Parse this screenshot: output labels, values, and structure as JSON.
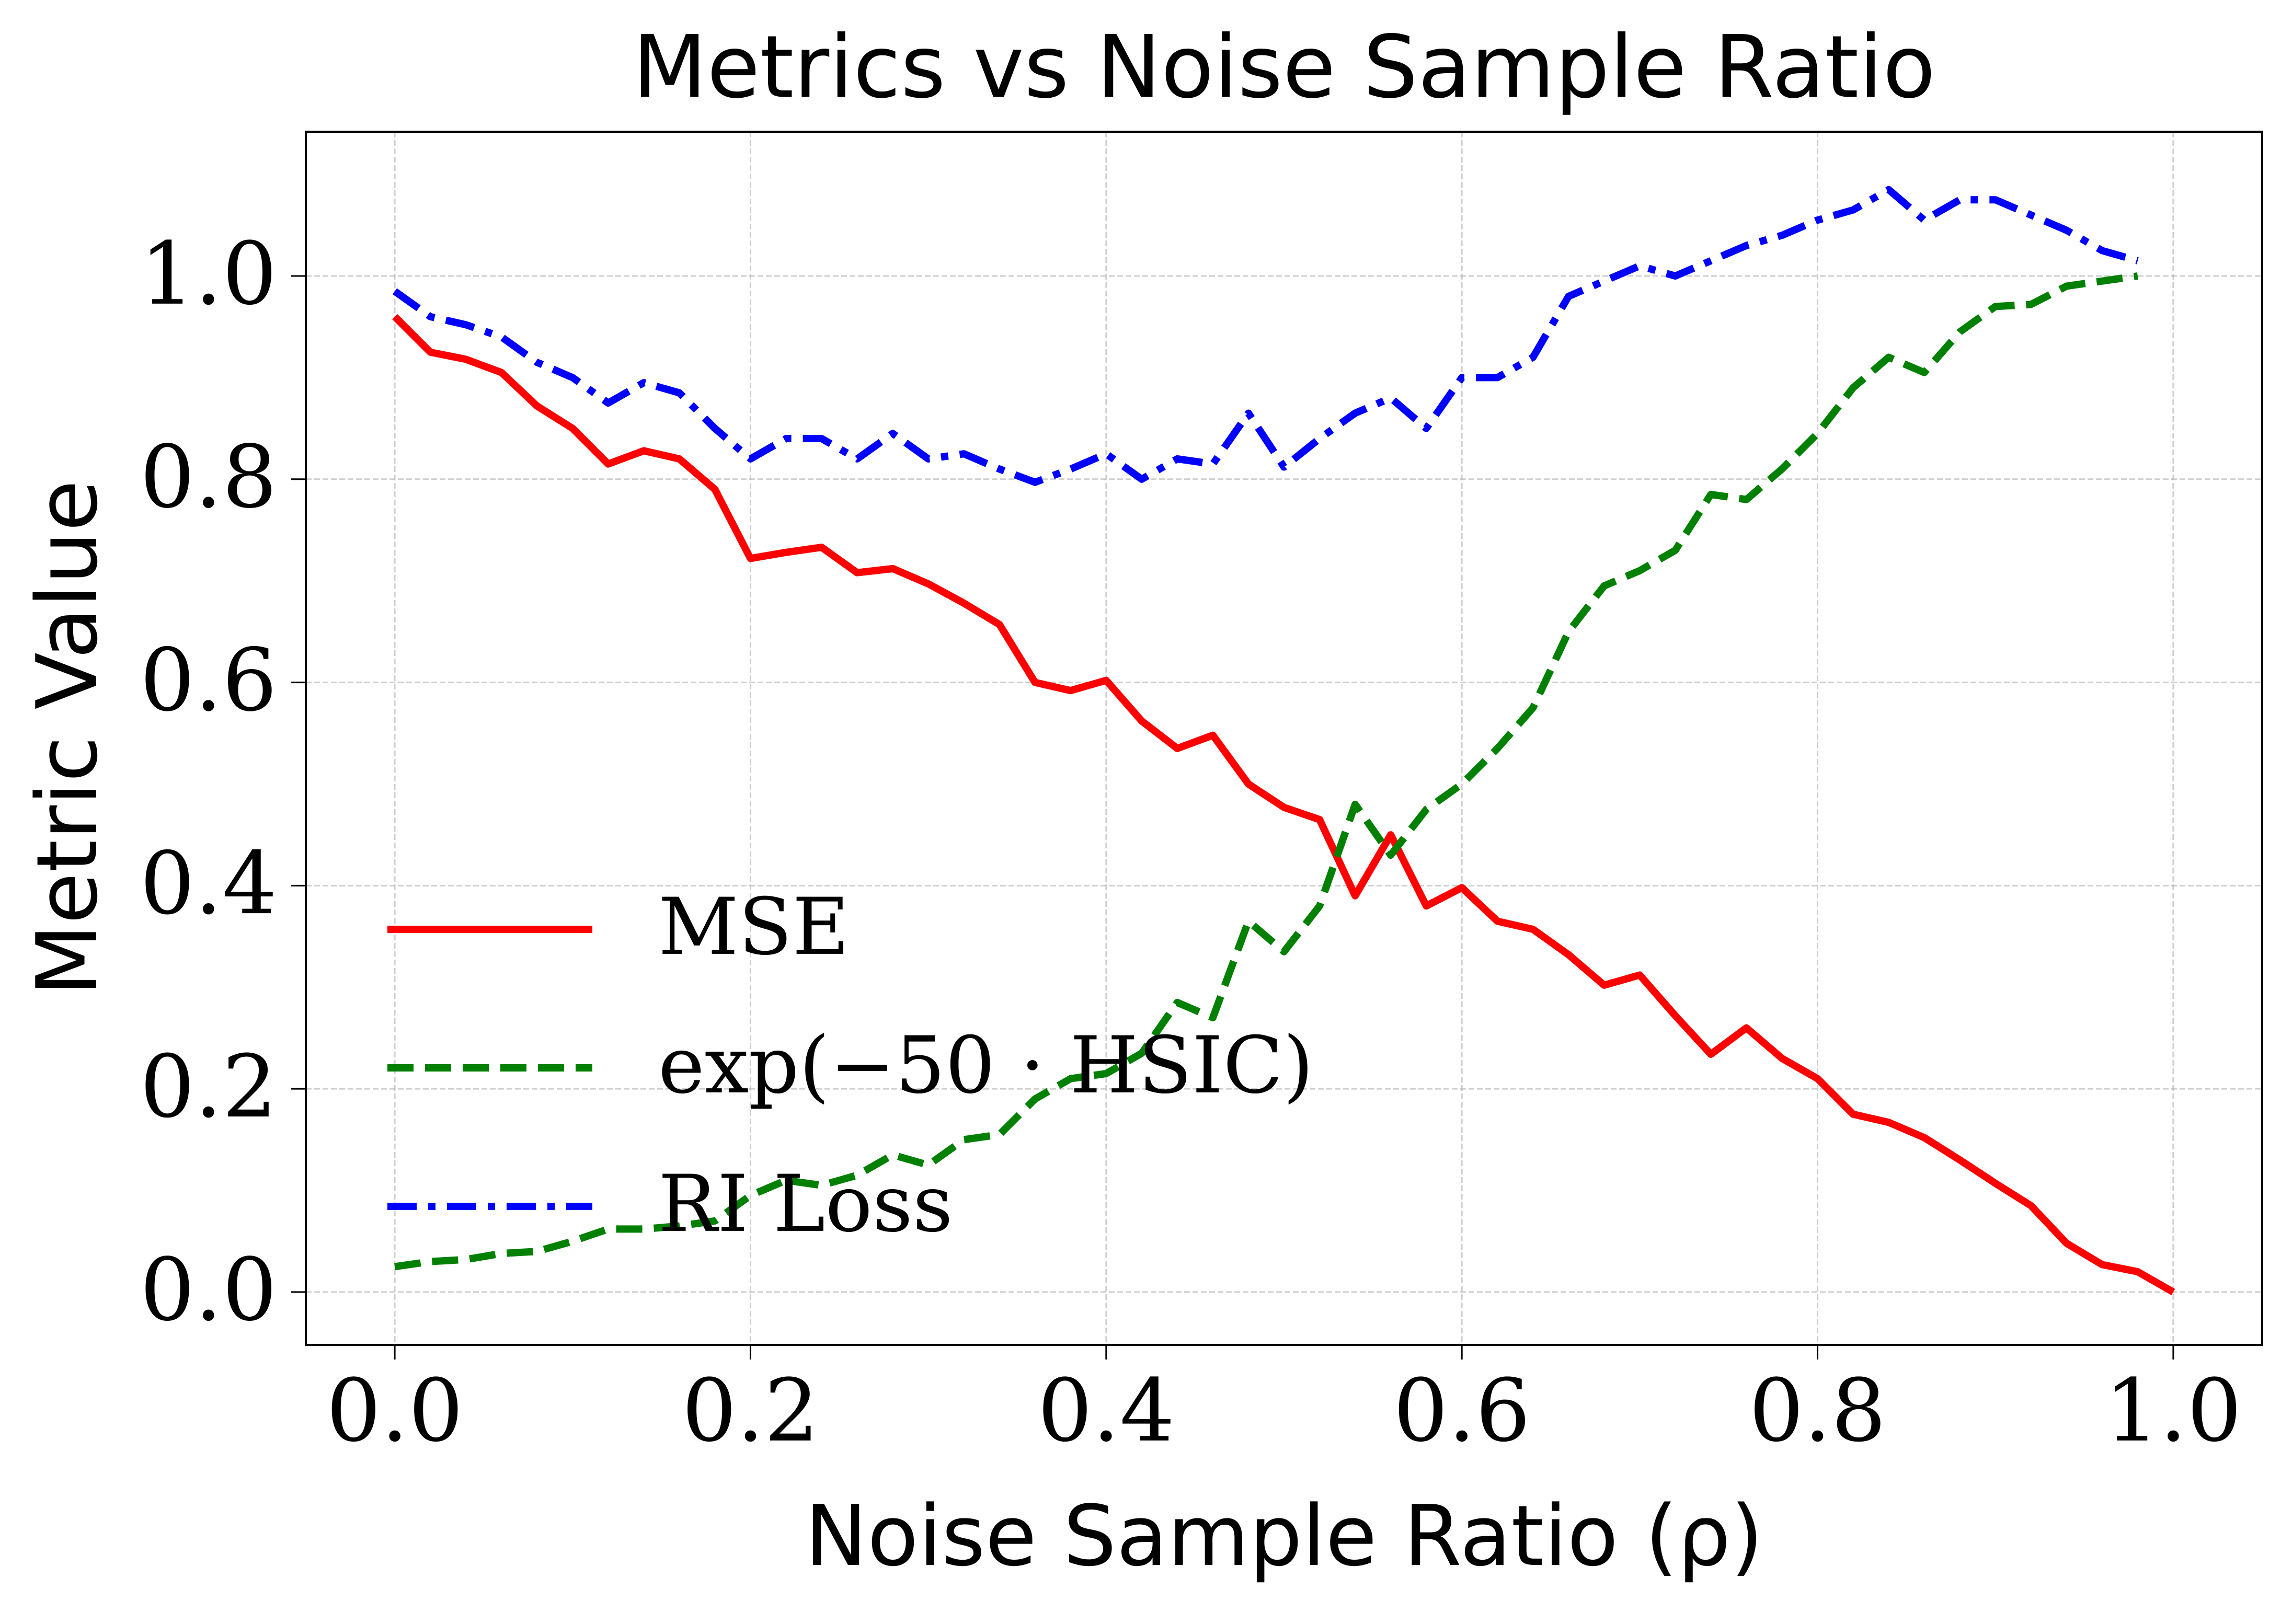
{
  "chart_data": {
    "type": "line",
    "title": "Metrics vs Noise Sample Ratio",
    "xlabel": "Noise Sample Ratio (ρ)",
    "ylabel": "Metric Value",
    "x": [
      0,
      0.02,
      0.04,
      0.06,
      0.08,
      0.1,
      0.12,
      0.14,
      0.16,
      0.18,
      0.2,
      0.22,
      0.24,
      0.26,
      0.28,
      0.3,
      0.32,
      0.34,
      0.36,
      0.38,
      0.4,
      0.42,
      0.44,
      0.46,
      0.48,
      0.5,
      0.52,
      0.54,
      0.56,
      0.58,
      0.6,
      0.62,
      0.64,
      0.66,
      0.68,
      0.7,
      0.72,
      0.74,
      0.76,
      0.78,
      0.8,
      0.82,
      0.84,
      0.86,
      0.88,
      0.9,
      0.92,
      0.94,
      0.96,
      0.98,
      1.0
    ],
    "series": [
      {
        "name": "MSE",
        "color": "#ff0000",
        "style": "solid",
        "values": [
          0.96,
          0.925,
          0.918,
          0.905,
          0.872,
          0.85,
          0.815,
          0.828,
          0.82,
          0.79,
          0.722,
          0.728,
          0.733,
          0.708,
          0.712,
          0.697,
          0.678,
          0.657,
          0.6,
          0.592,
          0.602,
          0.562,
          0.535,
          0.548,
          0.5,
          0.477,
          0.465,
          0.39,
          0.45,
          0.38,
          0.398,
          0.365,
          0.357,
          0.332,
          0.302,
          0.312,
          0.272,
          0.234,
          0.26,
          0.23,
          0.21,
          0.175,
          0.167,
          0.152,
          0.13,
          0.107,
          0.085,
          0.048,
          0.027,
          0.02,
          0.0
        ]
      },
      {
        "name": "exp(−50 · HSIC)",
        "color": "#008000",
        "style": "dashed",
        "values": [
          0.025,
          0.03,
          0.032,
          0.038,
          0.04,
          0.05,
          0.062,
          0.062,
          0.065,
          0.07,
          0.095,
          0.11,
          0.105,
          0.115,
          0.135,
          0.125,
          0.15,
          0.155,
          0.19,
          0.21,
          0.215,
          0.235,
          0.285,
          0.27,
          0.365,
          0.335,
          0.38,
          0.48,
          0.43,
          0.475,
          0.5,
          0.535,
          0.575,
          0.65,
          0.695,
          0.71,
          0.73,
          0.785,
          0.78,
          0.81,
          0.845,
          0.89,
          0.92,
          0.905,
          0.945,
          0.97,
          0.972,
          0.99,
          0.995,
          1.0,
          null
        ]
      },
      {
        "name": "RI Loss",
        "color": "#0000ff",
        "style": "dashdot",
        "values": [
          0.985,
          0.96,
          0.952,
          0.94,
          0.915,
          0.9,
          0.875,
          0.895,
          0.885,
          0.85,
          0.82,
          0.84,
          0.84,
          0.82,
          0.845,
          0.82,
          0.825,
          0.81,
          0.797,
          0.81,
          0.825,
          0.8,
          0.82,
          0.815,
          0.865,
          0.812,
          0.84,
          0.865,
          0.88,
          0.85,
          0.9,
          0.9,
          0.92,
          0.98,
          0.995,
          1.01,
          1.0,
          1.015,
          1.03,
          1.04,
          1.055,
          1.065,
          1.085,
          1.055,
          1.075,
          1.075,
          1.06,
          1.045,
          1.025,
          1.015,
          null
        ]
      }
    ],
    "xlim": [
      -0.05,
      1.05
    ],
    "ylim": [
      -0.052,
      1.142
    ],
    "xticks": [
      {
        "value": 0,
        "label": "0.0"
      },
      0.2,
      0.4,
      0.6,
      0.8,
      {
        "value": 1,
        "label": "1.0"
      }
    ],
    "yticks": [
      {
        "value": 0,
        "label": "0.0"
      },
      0.2,
      0.4,
      0.6,
      0.8,
      {
        "value": 1,
        "label": "1.0"
      }
    ],
    "grid": true,
    "legend": "lower left"
  }
}
